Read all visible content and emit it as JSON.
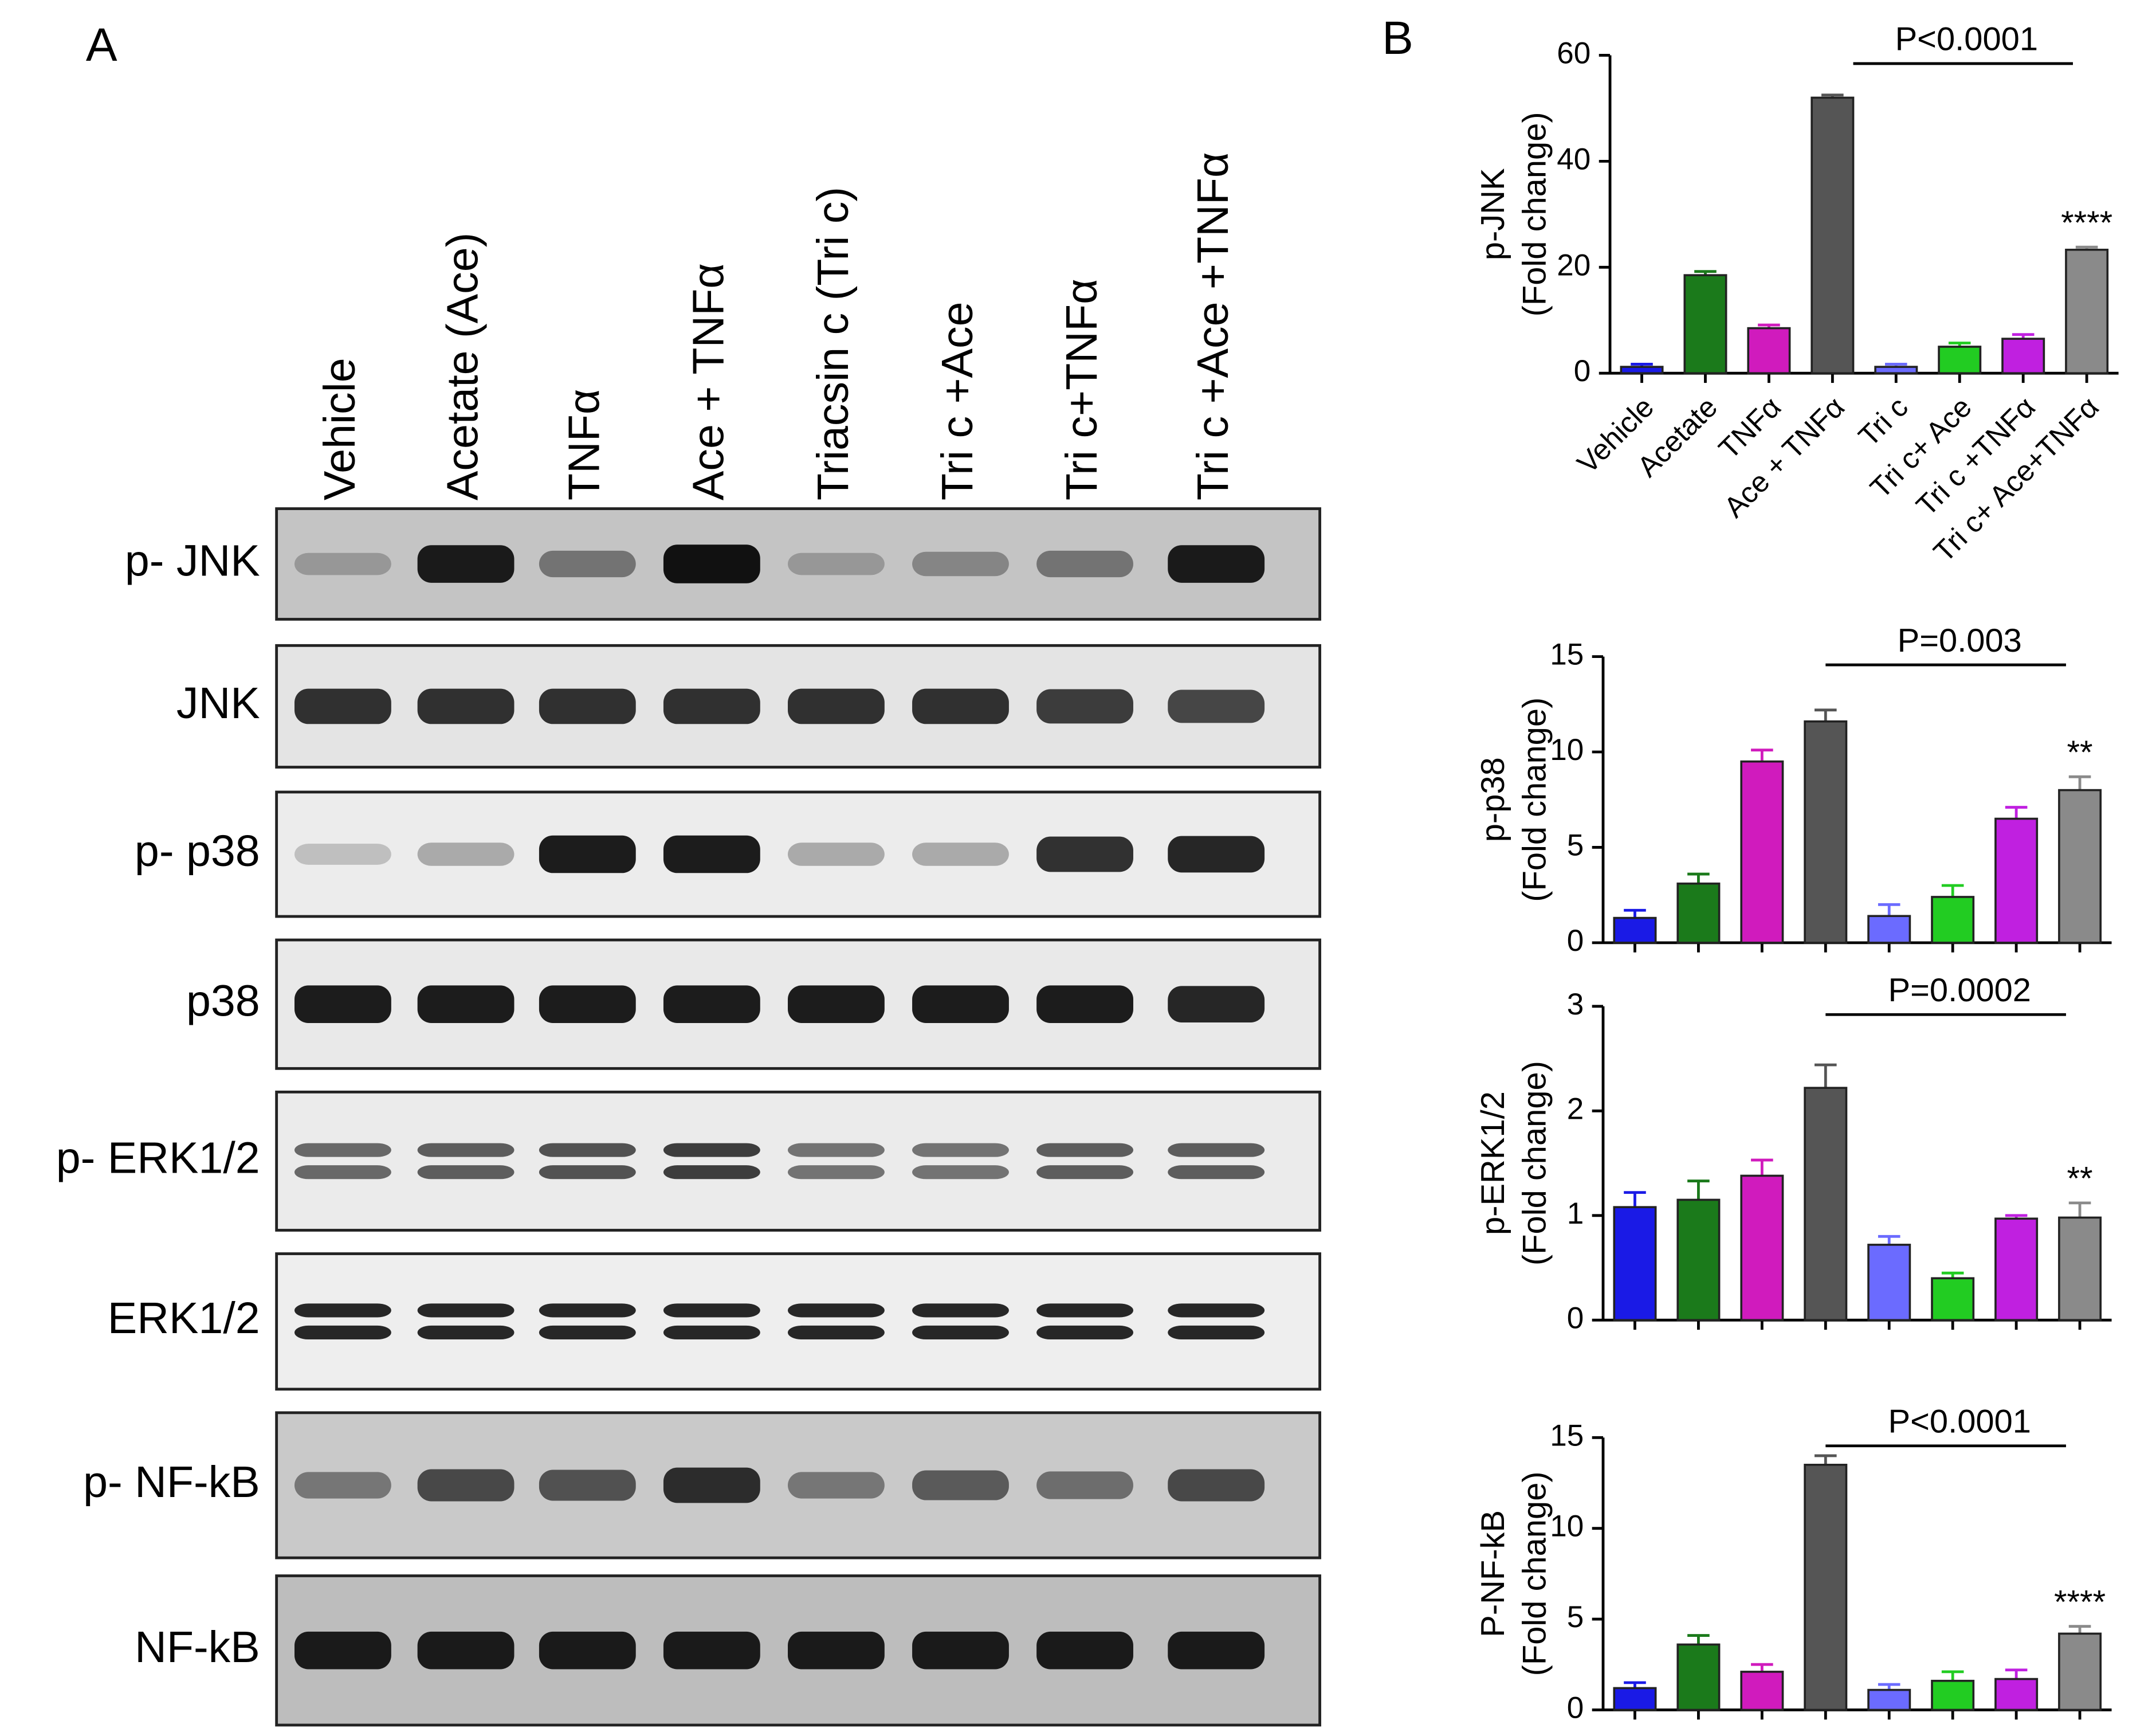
{
  "panels": {
    "a": "A",
    "b": "B"
  },
  "blot": {
    "lanes": [
      "Vehicle",
      "Acetate (Ace)",
      "TNFα",
      "Ace + TNFα",
      "Triacsin c (Tri c)",
      "Tri c +Ace",
      "Tri c+TNFα",
      "Tri c +Ace +TNFα"
    ],
    "rows": [
      "p- JNK",
      "JNK",
      "p- p38",
      "p38",
      "p- ERK1/2",
      "ERK1/2",
      "p- NF-kB",
      "NF-kB"
    ]
  },
  "chart_data": [
    {
      "type": "bar",
      "ylabel": [
        "p-JNK",
        "(Fold change)"
      ],
      "categories": [
        "Vehicle",
        "Acetate",
        "TNFα",
        "Ace + TNFα",
        "Tri c",
        "Tri c+ Ace",
        "Tri c +TNFα",
        "Tri c+ Ace+TNFα"
      ],
      "values": [
        1.2,
        18.5,
        8.5,
        52,
        1.2,
        5,
        6.5,
        23.3
      ],
      "error": [
        0.5,
        0.7,
        0.6,
        0.5,
        0.5,
        0.7,
        0.8,
        0.5
      ],
      "colors": [
        "#1a1ae6",
        "#1b7a1b",
        "#d01bbd",
        "#555555",
        "#6b6bff",
        "#22cc22",
        "#c020e0",
        "#8a8a8a"
      ],
      "ylim": [
        0,
        60
      ],
      "yticks": [
        0,
        20,
        40,
        60
      ],
      "annotation": "P<0.0001",
      "significance": "****"
    },
    {
      "type": "bar",
      "ylabel": [
        "p-p38",
        "(Fold change)"
      ],
      "categories": [
        null,
        null,
        null,
        null,
        null,
        null,
        null,
        null
      ],
      "values": [
        1.3,
        3.1,
        9.5,
        11.6,
        1.4,
        2.4,
        6.5,
        8.0
      ],
      "error": [
        0.4,
        0.5,
        0.6,
        0.6,
        0.6,
        0.6,
        0.6,
        0.7
      ],
      "colors": [
        "#1a1ae6",
        "#1b7a1b",
        "#d01bbd",
        "#555555",
        "#6b6bff",
        "#22cc22",
        "#c020e0",
        "#8a8a8a"
      ],
      "ylim": [
        0,
        15
      ],
      "yticks": [
        0,
        5,
        10,
        15
      ],
      "annotation": "P=0.003",
      "significance": "**"
    },
    {
      "type": "bar",
      "ylabel": [
        "p-ERK1/2",
        "(Fold change)"
      ],
      "categories": [
        null,
        null,
        null,
        null,
        null,
        null,
        null,
        null
      ],
      "values": [
        1.08,
        1.15,
        1.38,
        2.22,
        0.72,
        0.4,
        0.97,
        0.98
      ],
      "error": [
        0.14,
        0.18,
        0.15,
        0.22,
        0.08,
        0.05,
        0.03,
        0.14
      ],
      "colors": [
        "#1a1ae6",
        "#1b7a1b",
        "#d01bbd",
        "#555555",
        "#6b6bff",
        "#22cc22",
        "#c020e0",
        "#8a8a8a"
      ],
      "ylim": [
        0,
        3
      ],
      "yticks": [
        0,
        1,
        2,
        3
      ],
      "annotation": "P=0.0002",
      "significance": "**"
    },
    {
      "type": "bar",
      "ylabel": [
        "P-NF-kB",
        "(Fold change)"
      ],
      "categories": [
        null,
        null,
        null,
        null,
        null,
        null,
        null,
        null
      ],
      "values": [
        1.2,
        3.6,
        2.1,
        13.5,
        1.1,
        1.6,
        1.7,
        4.2
      ],
      "error": [
        0.3,
        0.5,
        0.4,
        0.5,
        0.3,
        0.5,
        0.5,
        0.4
      ],
      "colors": [
        "#1a1ae6",
        "#1b7a1b",
        "#d01bbd",
        "#555555",
        "#6b6bff",
        "#22cc22",
        "#c020e0",
        "#8a8a8a"
      ],
      "ylim": [
        0,
        15
      ],
      "yticks": [
        0,
        5,
        10,
        15
      ],
      "annotation": "P<0.0001",
      "significance": "****"
    }
  ]
}
